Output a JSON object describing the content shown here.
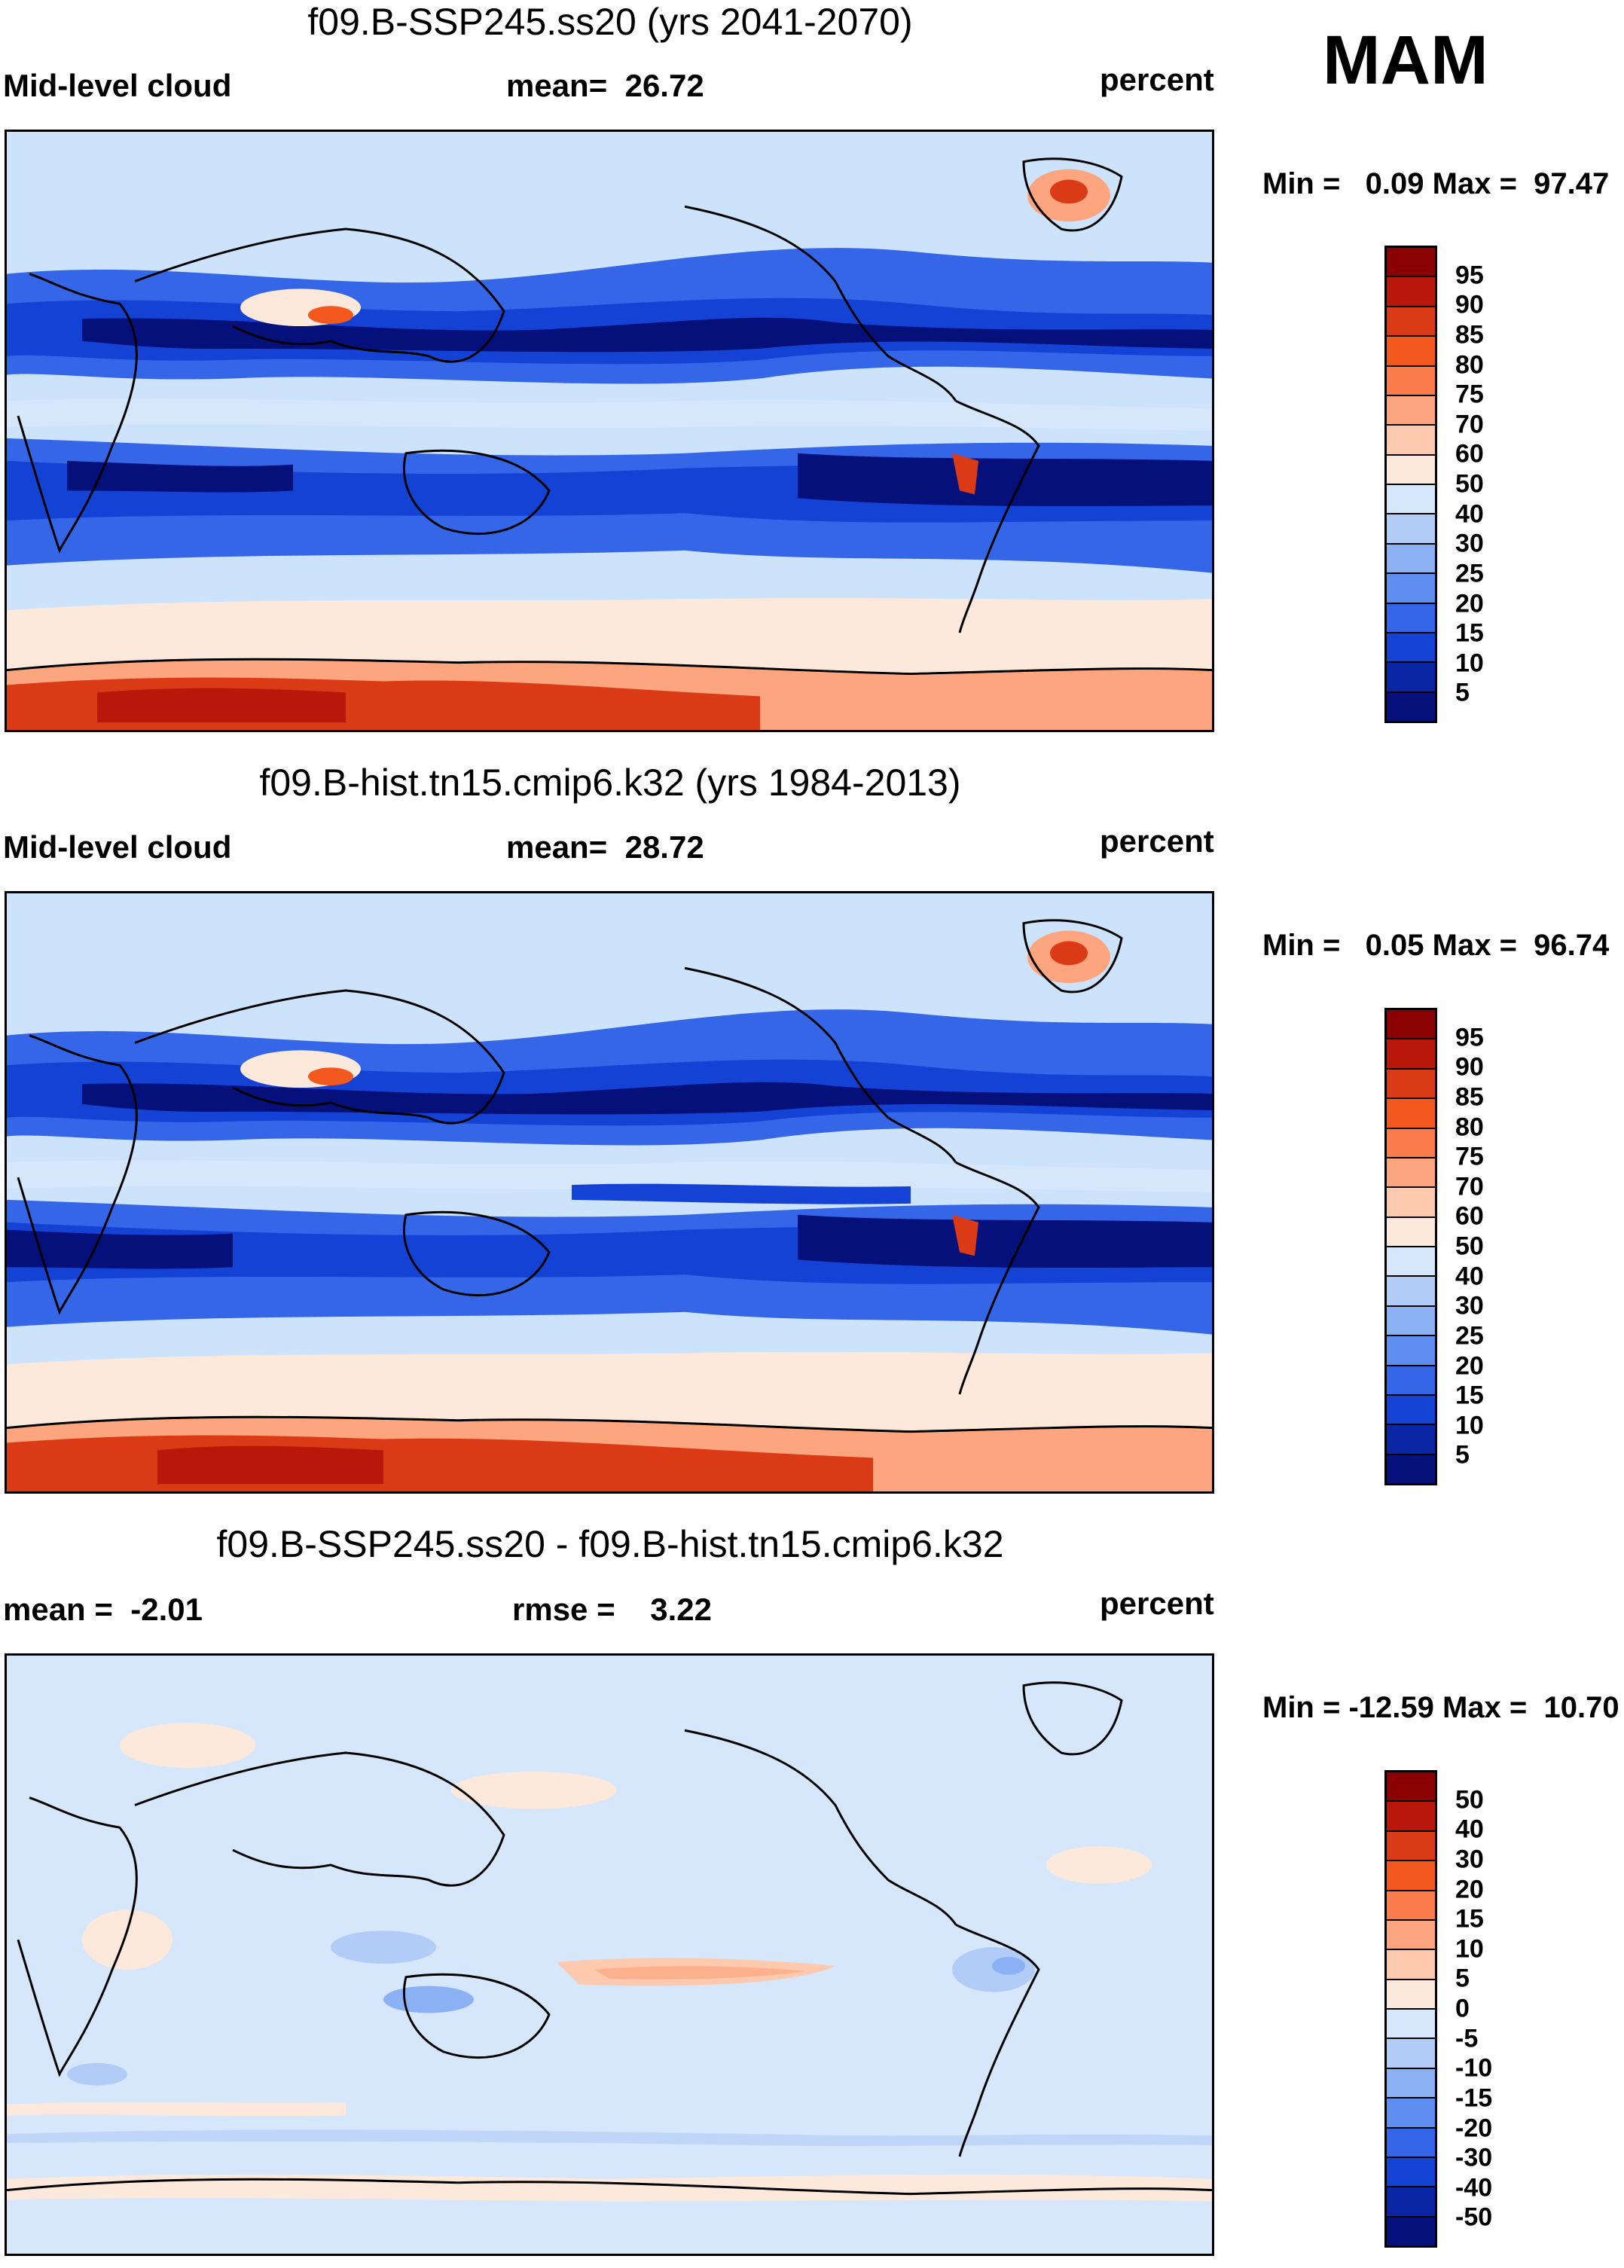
{
  "season": "MAM",
  "panels": [
    {
      "title": "f09.B-SSP245.ss20 (yrs 2041-2070)",
      "left_label": "Mid-level cloud",
      "center_label": "mean=  26.72",
      "right_label": "percent",
      "minmax": "Min =   0.09 Max =  97.47",
      "colorbar_labels": [
        "95",
        "90",
        "85",
        "80",
        "75",
        "70",
        "60",
        "50",
        "40",
        "30",
        "25",
        "20",
        "15",
        "10",
        "5"
      ],
      "colorbar_colors": [
        "#8b0000",
        "#b8170a",
        "#db3a17",
        "#f3581f",
        "#fb7b4a",
        "#fca57e",
        "#fdcab0",
        "#fde8dc",
        "#d7e7fb",
        "#b0ccf7",
        "#8bb0f4",
        "#5e8ef0",
        "#3566e8",
        "#1442d4",
        "#0a26a6",
        "#05107a"
      ]
    },
    {
      "title": "f09.B-hist.tn15.cmip6.k32 (yrs 1984-2013)",
      "left_label": "Mid-level cloud",
      "center_label": "mean=  28.72",
      "right_label": "percent",
      "minmax": "Min =   0.05 Max =  96.74",
      "colorbar_labels": [
        "95",
        "90",
        "85",
        "80",
        "75",
        "70",
        "60",
        "50",
        "40",
        "30",
        "25",
        "20",
        "15",
        "10",
        "5"
      ],
      "colorbar_colors": [
        "#8b0000",
        "#b8170a",
        "#db3a17",
        "#f3581f",
        "#fb7b4a",
        "#fca57e",
        "#fdcab0",
        "#fde8dc",
        "#d7e7fb",
        "#b0ccf7",
        "#8bb0f4",
        "#5e8ef0",
        "#3566e8",
        "#1442d4",
        "#0a26a6",
        "#05107a"
      ]
    },
    {
      "title": "f09.B-SSP245.ss20 - f09.B-hist.tn15.cmip6.k32",
      "left_label": "mean =  -2.01",
      "center_label": "rmse =    3.22",
      "right_label": "percent",
      "minmax": "Min = -12.59 Max =  10.70",
      "colorbar_labels": [
        "50",
        "40",
        "30",
        "20",
        "15",
        "10",
        "5",
        "0",
        "-5",
        "-10",
        "-15",
        "-20",
        "-30",
        "-40",
        "-50"
      ],
      "colorbar_colors": [
        "#8b0000",
        "#b8170a",
        "#db3a17",
        "#f3581f",
        "#fb7b4a",
        "#fca57e",
        "#fdcab0",
        "#fde8dc",
        "#d7e7fb",
        "#b0ccf7",
        "#8bb0f4",
        "#5e8ef0",
        "#3566e8",
        "#1442d4",
        "#0a26a6",
        "#05107a"
      ]
    }
  ]
}
